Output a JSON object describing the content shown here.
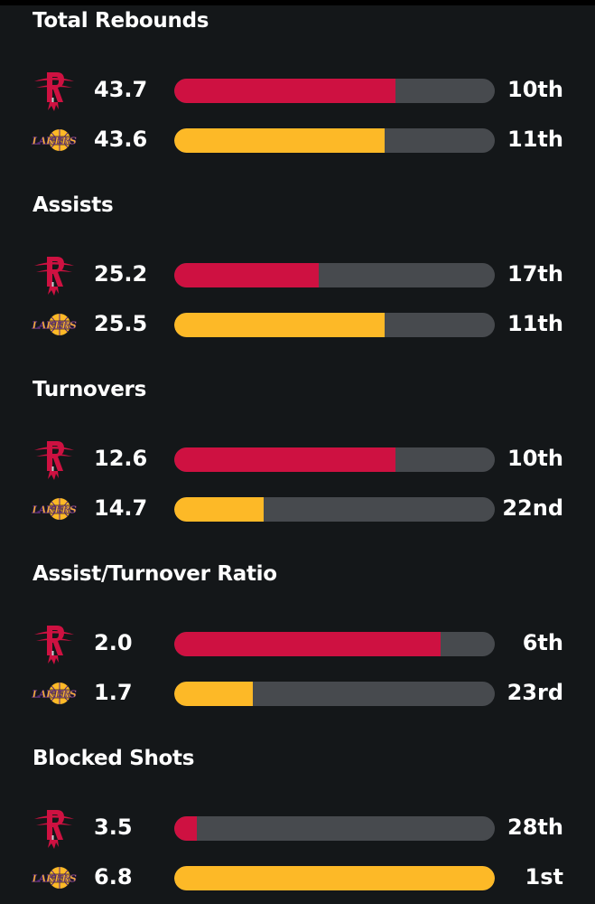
{
  "colors": {
    "background": "#141719",
    "track": "#474a4e",
    "rockets": "#ce1141",
    "lakers": "#fdb927"
  },
  "teams": {
    "rockets": {
      "icon": "rockets-logo-icon"
    },
    "lakers": {
      "icon": "lakers-logo-icon",
      "logo_text": "LAKERS"
    }
  },
  "sections": [
    {
      "title": "Total Rebounds",
      "rows": [
        {
          "team": "rockets",
          "value": "43.7",
          "rank": "10th",
          "fill": 0.69
        },
        {
          "team": "lakers",
          "value": "43.6",
          "rank": "11th",
          "fill": 0.655
        }
      ]
    },
    {
      "title": "Assists",
      "rows": [
        {
          "team": "rockets",
          "value": "25.2",
          "rank": "17th",
          "fill": 0.45
        },
        {
          "team": "lakers",
          "value": "25.5",
          "rank": "11th",
          "fill": 0.655
        }
      ]
    },
    {
      "title": "Turnovers",
      "rows": [
        {
          "team": "rockets",
          "value": "12.6",
          "rank": "10th",
          "fill": 0.69
        },
        {
          "team": "lakers",
          "value": "14.7",
          "rank": "22nd",
          "fill": 0.28
        }
      ]
    },
    {
      "title": "Assist/Turnover Ratio",
      "rows": [
        {
          "team": "rockets",
          "value": "2.0",
          "rank": "6th",
          "fill": 0.83
        },
        {
          "team": "lakers",
          "value": "1.7",
          "rank": "23rd",
          "fill": 0.245
        }
      ]
    },
    {
      "title": "Blocked Shots",
      "rows": [
        {
          "team": "rockets",
          "value": "3.5",
          "rank": "28th",
          "fill": 0.07
        },
        {
          "team": "lakers",
          "value": "6.8",
          "rank": "1st",
          "fill": 1.0
        }
      ]
    }
  ]
}
